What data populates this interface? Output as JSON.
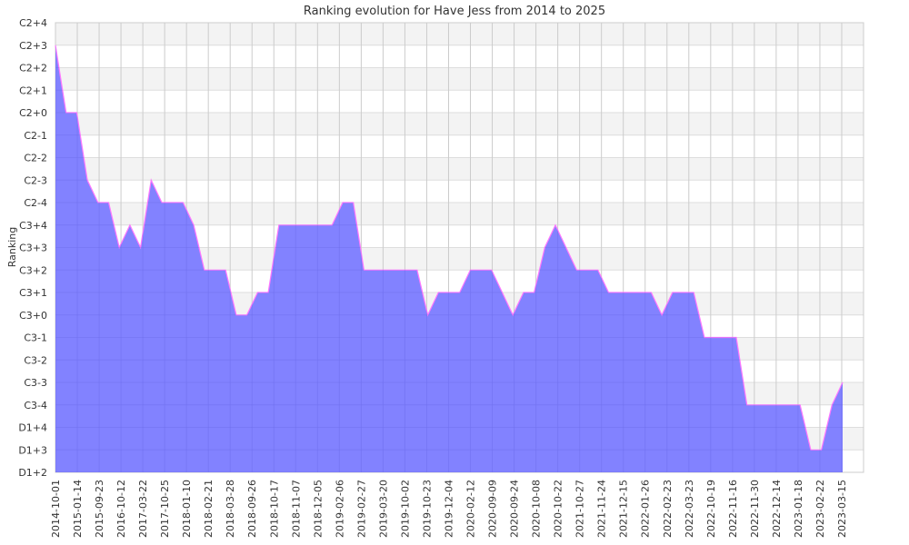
{
  "chart_data": {
    "type": "area",
    "title": "Ranking evolution for Have Jess from 2014 to 2025",
    "ylabel": "Ranking",
    "xlabel": "",
    "y_tick_labels": [
      "D1+2",
      "D1+3",
      "D1+4",
      "C3-4",
      "C3-3",
      "C3-2",
      "C3-1",
      "C3+0",
      "C3+1",
      "C3+2",
      "C3+3",
      "C3+4",
      "C2-4",
      "C2-3",
      "C2-2",
      "C2-1",
      "C2+0",
      "C2+1",
      "C2+2",
      "C2+3",
      "C2+4"
    ],
    "x_tick_labels": [
      "2014-10-01",
      "2015-01-14",
      "2015-09-23",
      "2016-10-12",
      "2017-03-22",
      "2017-10-25",
      "2018-01-10",
      "2018-02-21",
      "2018-03-28",
      "2018-09-26",
      "2018-10-17",
      "2018-11-07",
      "2018-12-05",
      "2019-02-06",
      "2019-02-27",
      "2019-03-20",
      "2019-10-02",
      "2019-10-23",
      "2019-12-04",
      "2020-02-12",
      "2020-09-09",
      "2020-09-24",
      "2020-10-08",
      "2020-10-22",
      "2021-10-27",
      "2021-11-24",
      "2021-12-15",
      "2022-01-26",
      "2022-02-23",
      "2022-03-23",
      "2022-10-19",
      "2022-11-16",
      "2022-11-30",
      "2022-12-14",
      "2023-01-18",
      "2023-02-22",
      "2023-03-15"
    ],
    "series": [
      {
        "values": [
          "C2+3",
          "C2+0",
          "C2+0",
          "C2-3",
          "C2-4",
          "C2-4",
          "C3+3",
          "C3+4",
          "C3+3",
          "C2-3",
          "C2-4",
          "C2-4",
          "C2-4",
          "C3+4",
          "C3+2",
          "C3+2",
          "C3+2",
          "C3+0",
          "C3+0",
          "C3+1",
          "C3+1",
          "C3+4",
          "C3+4",
          "C3+4",
          "C3+4",
          "C3+4",
          "C3+4",
          "C2-4",
          "C2-4",
          "C3+2",
          "C3+2",
          "C3+2",
          "C3+2",
          "C3+2",
          "C3+2",
          "C3+0",
          "C3+1",
          "C3+1",
          "C3+1",
          "C3+2",
          "C3+2",
          "C3+2",
          "C3+1",
          "C3+0",
          "C3+1",
          "C3+1",
          "C3+3",
          "C3+4",
          "C3+3",
          "C3+2",
          "C3+2",
          "C3+2",
          "C3+1",
          "C3+1",
          "C3+1",
          "C3+1",
          "C3+1",
          "C3+0",
          "C3+1",
          "C3+1",
          "C3+1",
          "C3-1",
          "C3-1",
          "C3-1",
          "C3-1",
          "C3-4",
          "C3-4",
          "C3-4",
          "C3-4",
          "C3-4",
          "C3-4",
          "D1+3",
          "D1+3",
          "C3-4",
          "C3-3"
        ]
      }
    ],
    "fill_color": "#7b7bff",
    "line_color": "#ff77ff",
    "grid": true
  }
}
